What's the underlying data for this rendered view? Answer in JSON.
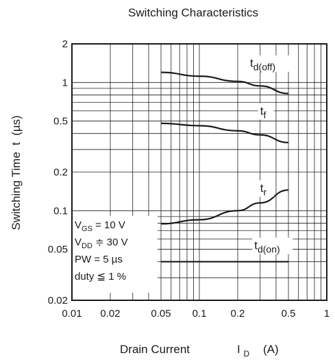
{
  "chart_data": {
    "type": "line",
    "title": "Switching Characteristics",
    "xlabel": "Drain Current",
    "xlabel_symbol": "I",
    "xlabel_sub": "D",
    "xlabel_unit": "(A)",
    "ylabel": "Switching Time  t  (µs)",
    "xscale": "log",
    "yscale": "log",
    "xlim": [
      0.01,
      1
    ],
    "ylim": [
      0.02,
      2
    ],
    "grid": true,
    "x_ticks": [
      0.01,
      0.02,
      0.05,
      0.1,
      0.2,
      0.5,
      1
    ],
    "x_tick_labels": [
      "0.01",
      "0.02",
      "0.05",
      "0.1",
      "0.2",
      "0.5",
      "1"
    ],
    "y_ticks": [
      0.02,
      0.05,
      0.1,
      0.2,
      0.5,
      1,
      2
    ],
    "y_tick_labels": [
      "0.02",
      "0.05",
      "0.1",
      "0.2",
      "0.5",
      "1",
      "2"
    ],
    "series": [
      {
        "name": "td(off)",
        "label_main": "t",
        "label_sub": "d(off)",
        "label_x": 0.25,
        "label_y": 1.32,
        "x": [
          0.05,
          0.1,
          0.2,
          0.3,
          0.5
        ],
        "y": [
          1.2,
          1.12,
          1.02,
          0.94,
          0.82
        ]
      },
      {
        "name": "tf",
        "label_main": "t",
        "label_sub": "f",
        "label_x": 0.3,
        "label_y": 0.56,
        "x": [
          0.05,
          0.1,
          0.2,
          0.3,
          0.5
        ],
        "y": [
          0.48,
          0.46,
          0.42,
          0.39,
          0.34
        ]
      },
      {
        "name": "tr",
        "label_main": "t",
        "label_sub": "r",
        "label_x": 0.3,
        "label_y": 0.14,
        "x": [
          0.05,
          0.1,
          0.2,
          0.3,
          0.5
        ],
        "y": [
          0.079,
          0.085,
          0.1,
          0.115,
          0.145
        ]
      },
      {
        "name": "td(on)",
        "label_main": "t",
        "label_sub": "d(on)",
        "label_x": 0.27,
        "label_y": 0.05,
        "x": [
          0.05,
          0.1,
          0.2,
          0.3,
          0.5
        ],
        "y": [
          0.04,
          0.04,
          0.04,
          0.04,
          0.04
        ]
      }
    ],
    "conditions": [
      {
        "main": "V",
        "sub": "GS",
        "rest": " = 10 V"
      },
      {
        "main": "V",
        "sub": "DD",
        "rest": " ≑ 30 V"
      },
      {
        "main": "PW = 5 µs",
        "sub": "",
        "rest": ""
      },
      {
        "main": "duty ≦ 1 %",
        "sub": "",
        "rest": ""
      }
    ]
  }
}
